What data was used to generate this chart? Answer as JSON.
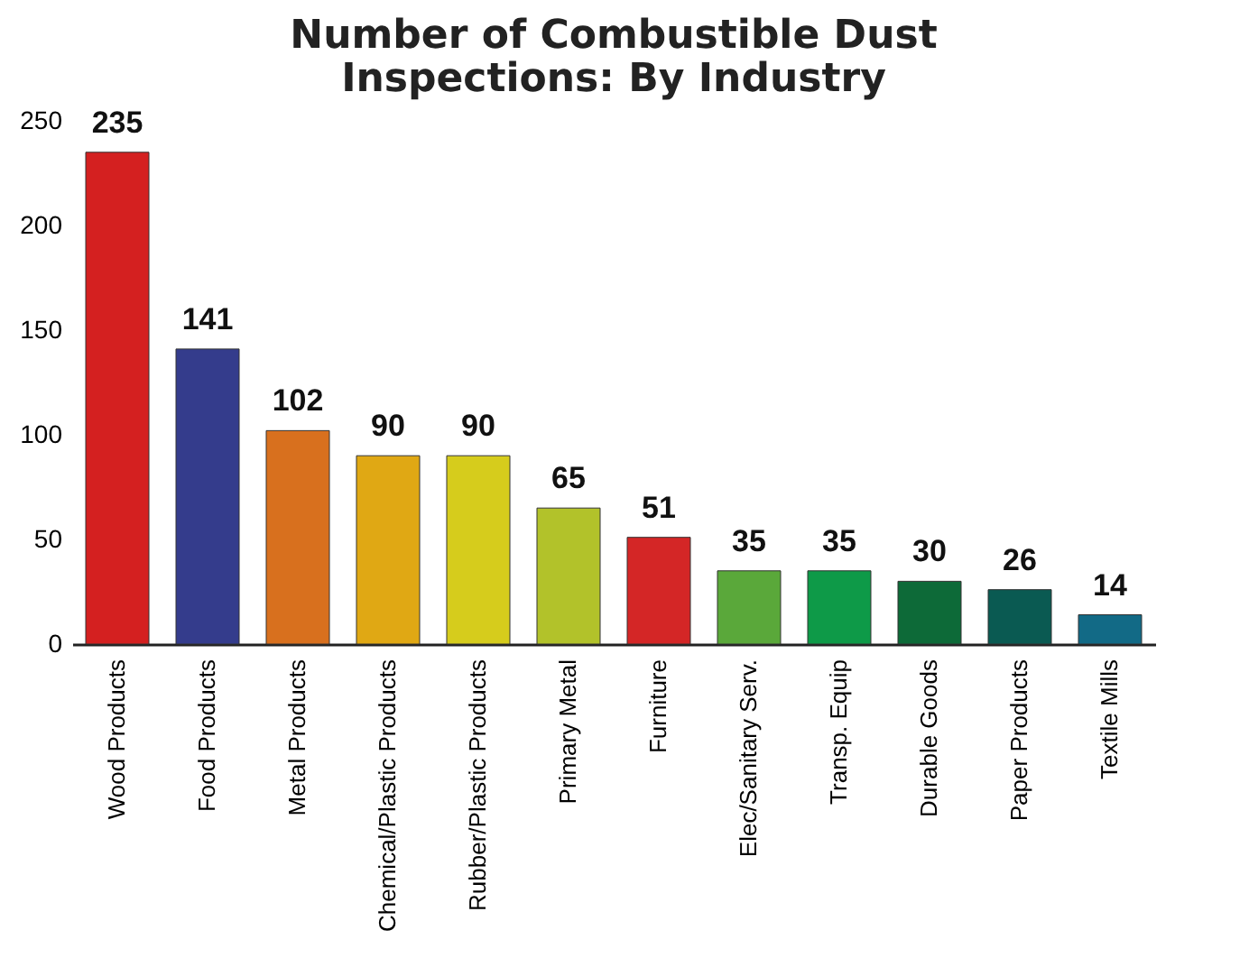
{
  "chart_data": {
    "type": "bar",
    "title": "Number of Combustible Dust Inspections: By Industry",
    "categories": [
      "Wood Products",
      "Food Products",
      "Metal Products",
      "Chemical/Plastic Products",
      "Rubber/Plastic Products",
      "Primary Metal",
      "Furniture",
      "Elec/Sanitary Serv.",
      "Transp. Equip",
      "Durable Goods",
      "Paper Products",
      "Textile Mills"
    ],
    "values": [
      235,
      141,
      102,
      90,
      90,
      65,
      51,
      35,
      35,
      30,
      26,
      14
    ],
    "colors": [
      "#d42020",
      "#343c8c",
      "#d8701e",
      "#e0a814",
      "#d6cc1c",
      "#b2c22a",
      "#d42626",
      "#5aa83a",
      "#0e9a48",
      "#0d6a38",
      "#0a5a52",
      "#126a86"
    ],
    "ylim": [
      0,
      250
    ],
    "yticks": [
      0,
      50,
      100,
      150,
      200,
      250
    ],
    "grid": false,
    "legend": false,
    "data_labels": true
  }
}
